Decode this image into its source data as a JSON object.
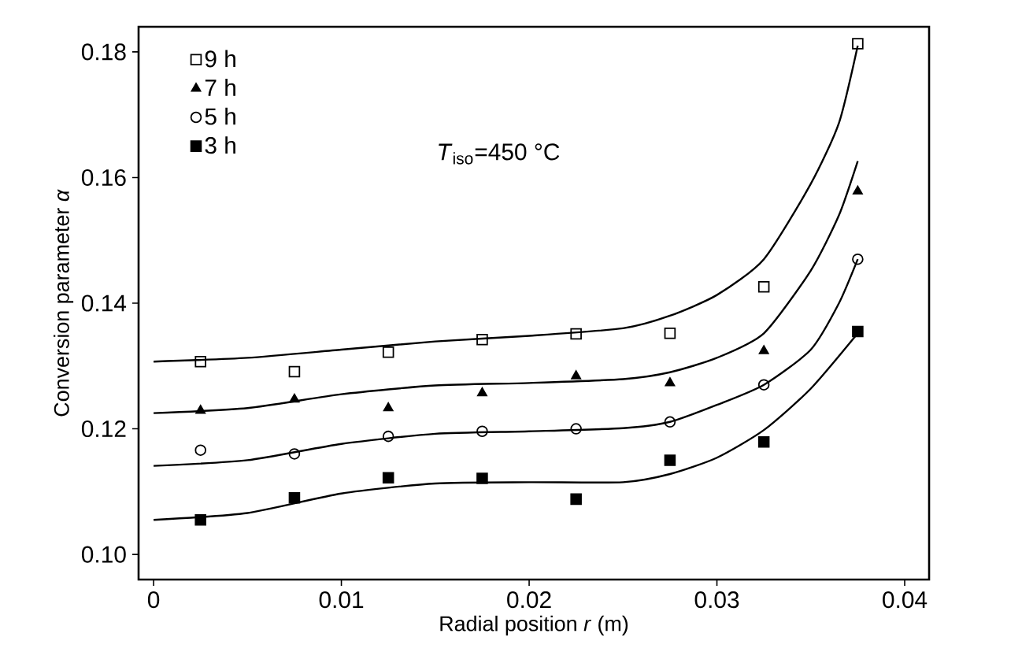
{
  "chart_data": {
    "type": "scatter",
    "xlabel": "Radial position *r* (m)",
    "ylabel": "Conversion parameter *α*",
    "annotations": [
      "*T*$_{iso}$=450 °C"
    ],
    "xlim": [
      -0.0008,
      0.0413
    ],
    "ylim": [
      0.096,
      0.184
    ],
    "xticks": [
      0,
      0.01,
      0.02,
      0.03,
      0.04
    ],
    "yticks": [
      {
        "value": 0.1,
        "label": "0.10"
      },
      0.12,
      0.14,
      0.16,
      0.18
    ],
    "legend": "top left",
    "grid": false,
    "series": [
      {
        "name": "9 h",
        "color": "#000000",
        "marker": "square",
        "x": [
          0.0025,
          0.0075,
          0.0125,
          0.0175,
          0.0225,
          0.0275,
          0.0325,
          0.0375
        ],
        "values": [
          0.1307,
          0.1291,
          0.1322,
          0.1342,
          0.1351,
          0.1352,
          0.1426,
          0.1813
        ]
      },
      {
        "name": "7 h",
        "color": "#000000",
        "marker": "triangle",
        "x": [
          0.0025,
          0.0075,
          0.0125,
          0.0175,
          0.0225,
          0.0275,
          0.0325,
          0.0375
        ],
        "values": [
          0.1229,
          0.1247,
          0.1233,
          0.1257,
          0.1284,
          0.1273,
          0.1324,
          0.1578
        ]
      },
      {
        "name": "5 h",
        "color": "#000000",
        "marker": "circle",
        "x": [
          0.0025,
          0.0075,
          0.0125,
          0.0175,
          0.0225,
          0.0275,
          0.0325,
          0.0375
        ],
        "values": [
          0.1166,
          0.116,
          0.1188,
          0.1196,
          0.12,
          0.1211,
          0.127,
          0.147
        ]
      },
      {
        "name": "3 h",
        "color": "#000000",
        "marker": "square",
        "x": [
          0.0025,
          0.0075,
          0.0125,
          0.0175,
          0.0225,
          0.0275,
          0.0325,
          0.0375
        ],
        "values": [
          0.1055,
          0.109,
          0.1122,
          0.1121,
          0.1088,
          0.115,
          0.1179,
          0.1355
        ]
      },
      {
        "type": "line",
        "color": "#000000",
        "marker": "none",
        "line_style": "solid",
        "x": [
          0,
          0.005,
          0.01,
          0.015,
          0.02,
          0.025,
          0.0275,
          0.03,
          0.0325,
          0.035,
          0.0365,
          0.0375
        ],
        "values": [
          0.1307,
          0.1313,
          0.1326,
          0.1339,
          0.1348,
          0.136,
          0.138,
          0.1413,
          0.147,
          0.159,
          0.1687,
          0.181
        ]
      },
      {
        "type": "line",
        "color": "#000000",
        "marker": "none",
        "line_style": "solid",
        "x": [
          0,
          0.005,
          0.01,
          0.015,
          0.02,
          0.025,
          0.0275,
          0.03,
          0.0325,
          0.035,
          0.0365,
          0.0375
        ],
        "values": [
          0.1225,
          0.1233,
          0.1255,
          0.1269,
          0.1273,
          0.1279,
          0.129,
          0.1313,
          0.1352,
          0.1452,
          0.154,
          0.1626
        ]
      },
      {
        "type": "line",
        "color": "#000000",
        "marker": "none",
        "line_style": "solid",
        "x": [
          0,
          0.005,
          0.01,
          0.015,
          0.02,
          0.025,
          0.0275,
          0.03,
          0.0325,
          0.035,
          0.0365,
          0.0375
        ],
        "values": [
          0.1141,
          0.115,
          0.1176,
          0.1192,
          0.1196,
          0.1201,
          0.1211,
          0.1238,
          0.127,
          0.1326,
          0.14,
          0.147
        ]
      },
      {
        "type": "line",
        "color": "#000000",
        "marker": "none",
        "line_style": "solid",
        "x": [
          0,
          0.005,
          0.01,
          0.015,
          0.02,
          0.025,
          0.0275,
          0.03,
          0.0325,
          0.035,
          0.0375
        ],
        "values": [
          0.1055,
          0.1066,
          0.1097,
          0.1113,
          0.1115,
          0.1115,
          0.1128,
          0.1154,
          0.1198,
          0.1264,
          0.1352
        ]
      }
    ]
  }
}
